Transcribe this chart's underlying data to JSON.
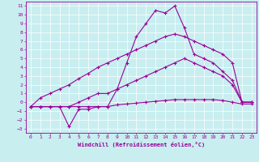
{
  "xlabel": "Windchill (Refroidissement éolien,°C)",
  "bg_color": "#c8eef0",
  "line_color": "#990099",
  "grid_color": "#ffffff",
  "xlim": [
    -0.5,
    23.5
  ],
  "ylim": [
    -3.5,
    11.5
  ],
  "xticks": [
    0,
    1,
    2,
    3,
    4,
    5,
    6,
    7,
    8,
    9,
    10,
    11,
    12,
    13,
    14,
    15,
    16,
    17,
    18,
    19,
    20,
    21,
    22,
    23
  ],
  "yticks": [
    -3,
    -2,
    -1,
    0,
    1,
    2,
    3,
    4,
    5,
    6,
    7,
    8,
    9,
    10,
    11
  ],
  "line1_x": [
    0,
    1,
    2,
    3,
    4,
    5,
    6,
    7,
    8,
    9,
    10,
    11,
    12,
    13,
    14,
    15,
    16,
    17,
    18,
    19,
    20,
    21,
    22,
    23
  ],
  "line1_y": [
    -0.5,
    -0.5,
    -0.5,
    -0.5,
    -0.5,
    -0.5,
    -0.5,
    -0.5,
    -0.5,
    -0.3,
    -0.2,
    -0.1,
    0.0,
    0.1,
    0.2,
    0.3,
    0.3,
    0.3,
    0.3,
    0.3,
    0.2,
    0.0,
    -0.2,
    -0.2
  ],
  "line2_x": [
    0,
    1,
    2,
    3,
    4,
    5,
    6,
    7,
    8,
    9,
    10,
    11,
    12,
    13,
    14,
    15,
    16,
    17,
    18,
    19,
    20,
    21,
    22,
    23
  ],
  "line2_y": [
    -0.5,
    0.5,
    1.0,
    1.5,
    2.0,
    2.7,
    3.3,
    4.0,
    4.5,
    5.0,
    5.5,
    6.0,
    6.5,
    7.0,
    7.5,
    7.8,
    7.5,
    7.0,
    6.5,
    6.0,
    5.5,
    4.5,
    0.0,
    0.0
  ],
  "line3_x": [
    0,
    1,
    2,
    3,
    4,
    5,
    6,
    7,
    8,
    9,
    10,
    11,
    12,
    13,
    14,
    15,
    16,
    17,
    18,
    19,
    20,
    21,
    22,
    23
  ],
  "line3_y": [
    -0.5,
    -0.5,
    -0.5,
    -0.5,
    -2.8,
    -0.8,
    -0.8,
    -0.5,
    -0.5,
    1.5,
    4.5,
    7.5,
    9.0,
    10.5,
    10.2,
    11.0,
    8.5,
    5.5,
    5.0,
    4.5,
    3.5,
    2.5,
    0.0,
    0.0
  ],
  "line4_x": [
    0,
    1,
    2,
    3,
    4,
    5,
    6,
    7,
    8,
    9,
    10,
    11,
    12,
    13,
    14,
    15,
    16,
    17,
    18,
    19,
    20,
    21,
    22,
    23
  ],
  "line4_y": [
    -0.5,
    -0.5,
    -0.5,
    -0.5,
    -0.5,
    0.0,
    0.5,
    1.0,
    1.0,
    1.5,
    2.0,
    2.5,
    3.0,
    3.5,
    4.0,
    4.5,
    5.0,
    4.5,
    4.0,
    3.5,
    3.0,
    2.0,
    0.0,
    0.0
  ]
}
